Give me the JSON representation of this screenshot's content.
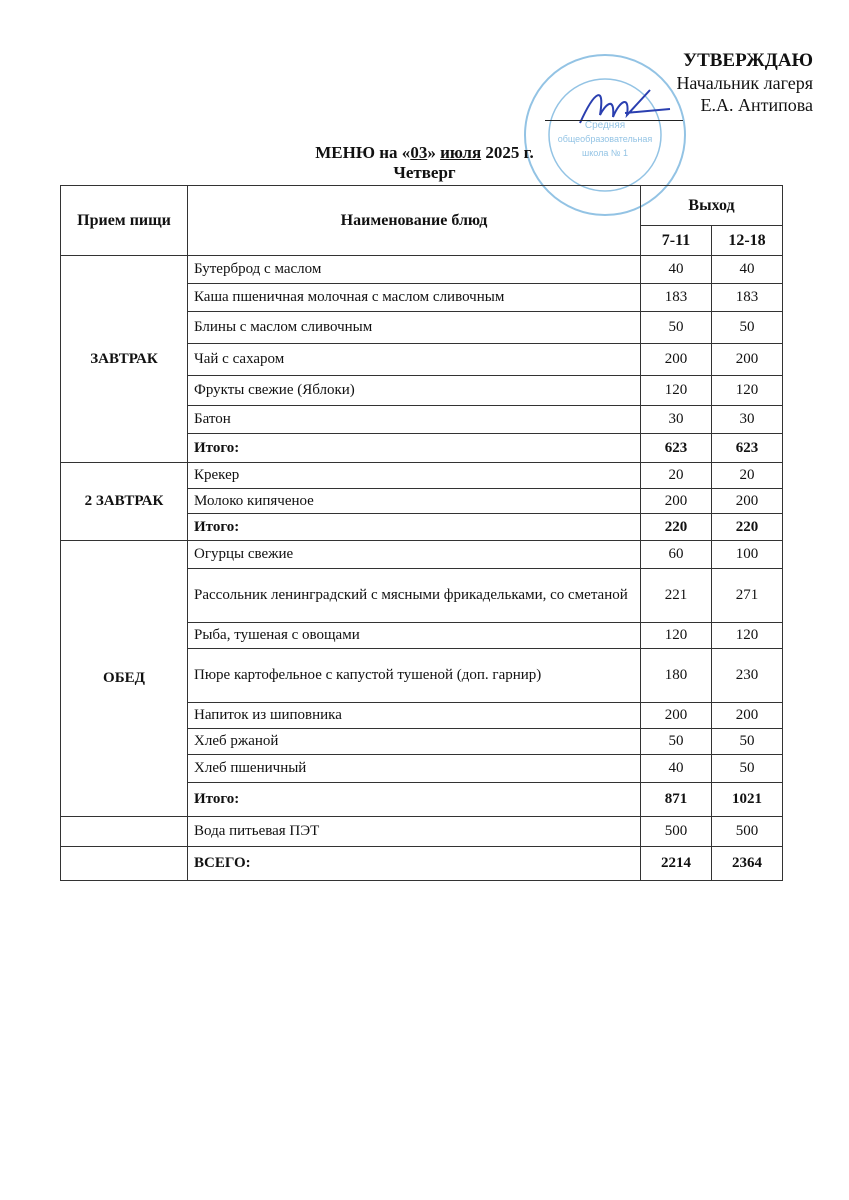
{
  "approval": {
    "title": "УТВЕРЖДАЮ",
    "position": "Начальник лагеря",
    "name": "Е.А. Антипова"
  },
  "stamp": {
    "text": "Средняя общеобразовательная школа № 1",
    "color": "#6fb0dc"
  },
  "header": {
    "prefix": "МЕНЮ на «",
    "day": "03",
    "mid": "» ",
    "month": "июля",
    "suffix": " 2025 г.",
    "weekday": "Четверг"
  },
  "table": {
    "col_meal": "Прием пищи",
    "col_dish": "Наименование блюд",
    "col_output": "Выход",
    "col_a": "7-11",
    "col_b": "12-18",
    "groups": [
      {
        "meal": "ЗАВТРАК",
        "rows": [
          {
            "dish": "Бутерброд с маслом",
            "a": "40",
            "b": "40"
          },
          {
            "dish": "Каша пшеничная молочная с маслом сливочным",
            "a": "183",
            "b": "183"
          },
          {
            "dish": "Блины с маслом сливочным",
            "a": "50",
            "b": "50"
          },
          {
            "dish": "Чай с сахаром",
            "a": "200",
            "b": "200"
          },
          {
            "dish": "Фрукты свежие (Яблоки)",
            "a": "120",
            "b": "120"
          },
          {
            "dish": "Батон",
            "a": "30",
            "b": "30"
          },
          {
            "dish": "Итого:",
            "a": "623",
            "b": "623",
            "total": true
          }
        ]
      },
      {
        "meal": "2 ЗАВТРАК",
        "rows": [
          {
            "dish": "Крекер",
            "a": "20",
            "b": "20"
          },
          {
            "dish": "Молоко кипяченое",
            "a": "200",
            "b": "200"
          },
          {
            "dish": "Итого:",
            "a": "220",
            "b": "220",
            "total": true
          }
        ]
      },
      {
        "meal": "ОБЕД",
        "rows": [
          {
            "dish": "Огурцы свежие",
            "a": "60",
            "b": "100"
          },
          {
            "dish": "Рассольник ленинградский с мясными фрикадельками, со сметаной",
            "a": "221",
            "b": "271"
          },
          {
            "dish": "Рыба, тушеная с овощами",
            "a": "120",
            "b": "120"
          },
          {
            "dish": "Пюре картофельное с капустой тушеной (доп. гарнир)",
            "a": "180",
            "b": "230"
          },
          {
            "dish": "Напиток из шиповника",
            "a": "200",
            "b": "200"
          },
          {
            "dish": "Хлеб ржаной",
            "a": "50",
            "b": "50"
          },
          {
            "dish": "Хлеб пшеничный",
            "a": "40",
            "b": "50"
          },
          {
            "dish": "Итого:",
            "a": "871",
            "b": "1021",
            "total": true
          }
        ]
      },
      {
        "meal": "",
        "rows": [
          {
            "dish": "Вода питьевая ПЭТ",
            "a": "500",
            "b": "500"
          }
        ]
      },
      {
        "meal": "",
        "rows": [
          {
            "dish": "ВСЕГО:",
            "a": "2214",
            "b": "2364",
            "total": true
          }
        ]
      }
    ]
  }
}
